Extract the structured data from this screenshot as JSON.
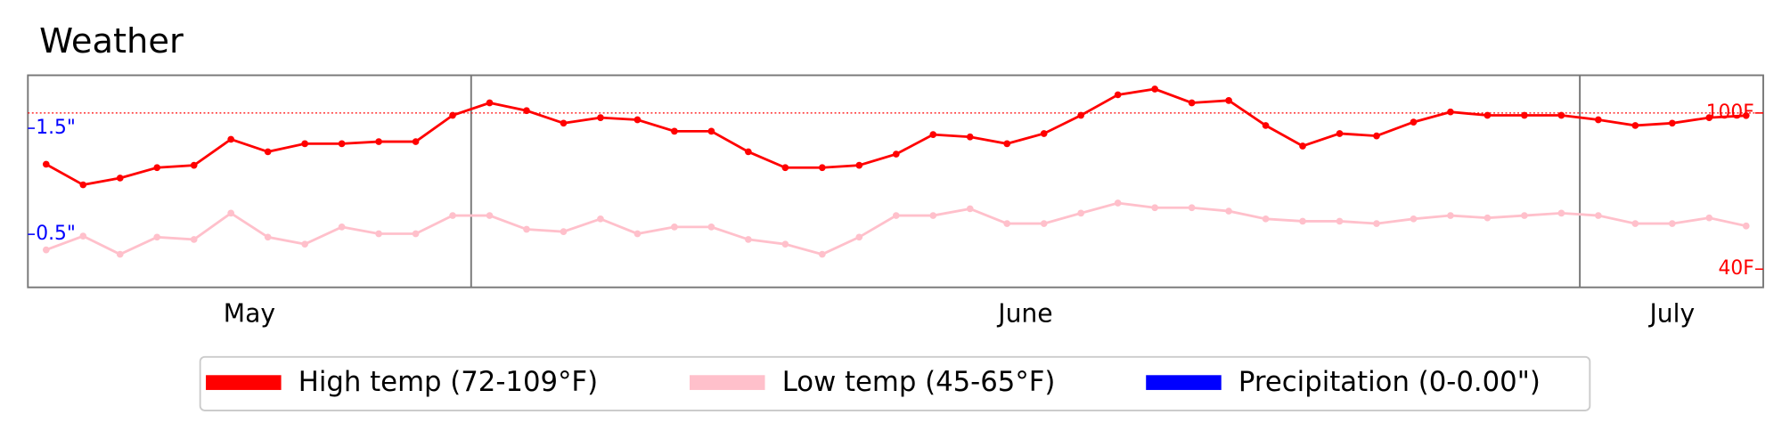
{
  "chart_data": {
    "type": "line",
    "title": "Weather",
    "categories": [
      "May",
      "May",
      "May",
      "May",
      "May",
      "May",
      "May",
      "May",
      "May",
      "May",
      "May",
      "May",
      "June",
      "June",
      "June",
      "June",
      "June",
      "June",
      "June",
      "June",
      "June",
      "June",
      "June",
      "June",
      "June",
      "June",
      "June",
      "June",
      "June",
      "June",
      "June",
      "June",
      "June",
      "June",
      "June",
      "June",
      "June",
      "June",
      "June",
      "June",
      "June",
      "June",
      "July",
      "July",
      "July",
      "July",
      "July"
    ],
    "series": [
      {
        "name": "High temp (72-109°F)",
        "color": "red",
        "axis": "y",
        "values": [
          80.3,
          72.4,
          75,
          79,
          79.9,
          89.9,
          85.1,
          88.2,
          88.2,
          89,
          89,
          99.1,
          103.9,
          100.9,
          96.1,
          98.2,
          97.4,
          93,
          93,
          85.1,
          79,
          79,
          79.9,
          84.2,
          91.7,
          90.8,
          88.2,
          92.1,
          99.1,
          107,
          109.2,
          103.9,
          104.8,
          95.2,
          87.3,
          92.1,
          91.2,
          96.5,
          100.4,
          99.1,
          99.1,
          99.1,
          97.4,
          95.2,
          96.1,
          98.2,
          99
        ]
      },
      {
        "name": "Low temp (45-65°F)",
        "color": "pink",
        "axis": "y",
        "values": [
          47.4,
          52.7,
          45.7,
          52.3,
          51.4,
          61.5,
          52.3,
          49.6,
          56.2,
          53.6,
          53.6,
          60.6,
          60.6,
          55.3,
          54.4,
          59.3,
          53.6,
          56.2,
          56.2,
          51.4,
          49.6,
          45.7,
          52.3,
          60.6,
          60.6,
          63.2,
          57.5,
          57.5,
          61.5,
          65.4,
          63.6,
          63.6,
          62.3,
          59.3,
          58.4,
          58.4,
          57.5,
          59.3,
          60.6,
          59.7,
          60.6,
          61.5,
          60.6,
          57.5,
          57.5,
          59.7,
          56.6
        ]
      },
      {
        "name": "Precipitation (0-0.00\")",
        "color": "blue",
        "axis": "y2",
        "values": [
          0,
          0,
          0,
          0,
          0,
          0,
          0,
          0,
          0,
          0,
          0,
          0,
          0,
          0,
          0,
          0,
          0,
          0,
          0,
          0,
          0,
          0,
          0,
          0,
          0,
          0,
          0,
          0,
          0,
          0,
          0,
          0,
          0,
          0,
          0,
          0,
          0,
          0,
          0,
          0,
          0,
          0,
          0,
          0,
          0,
          0,
          0
        ]
      }
    ],
    "ylim": [
      33,
      114.5
    ],
    "yticks": [
      {
        "value": 100,
        "label": "100F"
      },
      {
        "value": 40,
        "label": "40F"
      }
    ],
    "y2lim": [
      0,
      2
    ],
    "y2ticks": [
      {
        "value": 1.5,
        "label": "1.5\""
      },
      {
        "value": 0.5,
        "label": "0.5\""
      }
    ],
    "y_color": "red",
    "y2_color": "blue",
    "legend": "bottom"
  }
}
